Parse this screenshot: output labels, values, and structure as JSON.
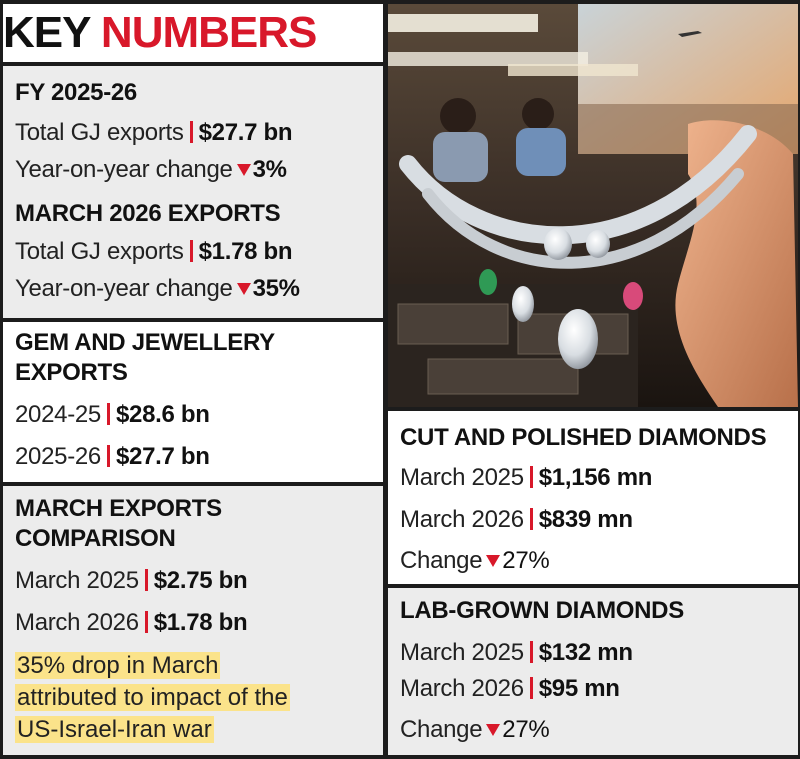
{
  "title": {
    "part1": "KEY",
    "part2": "NUMBERS"
  },
  "fy": {
    "heading": "FY 2025-26",
    "rows": [
      {
        "label": "Total GJ exports",
        "value": "$27.7 bn"
      },
      {
        "label": "Year-on-year change",
        "value": "3%"
      }
    ]
  },
  "march_exports": {
    "heading": "MARCH 2026 EXPORTS",
    "rows": [
      {
        "label": "Total GJ exports",
        "value": "$1.78 bn"
      },
      {
        "label": "Year-on-year change",
        "value": "35%"
      }
    ]
  },
  "gj": {
    "heading1": "GEM AND JEWELLERY",
    "heading2": "EXPORTS",
    "rows": [
      {
        "label": "2024-25",
        "value": "$28.6 bn"
      },
      {
        "label": "2025-26",
        "value": "$27.7 bn"
      }
    ]
  },
  "comparison": {
    "heading1": "MARCH EXPORTS",
    "heading2": "COMPARISON",
    "rows": [
      {
        "label": "March 2025",
        "value": "$2.75 bn"
      },
      {
        "label": "March 2026",
        "value": "$1.78 bn"
      }
    ],
    "note": [
      "35% drop in March",
      "attributed to impact of the",
      "US-Israel-Iran war"
    ]
  },
  "cut": {
    "heading": "CUT AND POLISHED DIAMONDS",
    "rows": [
      {
        "label": "March 2025",
        "value": "$1,156 mn"
      },
      {
        "label": "March 2026",
        "value": "$839 mn"
      }
    ],
    "change_label": "Change",
    "change_value": "27%"
  },
  "lab": {
    "heading": "LAB-GROWN DIAMONDS",
    "rows": [
      {
        "label": "March 2025",
        "value": "$132 mn"
      },
      {
        "label": "March 2026",
        "value": "$95 mn"
      }
    ],
    "change_label": "Change",
    "change_value": "27%"
  },
  "colors": {
    "accent": "#d8182a",
    "highlight": "#fbe38a",
    "panel_grey": "#ececec"
  }
}
